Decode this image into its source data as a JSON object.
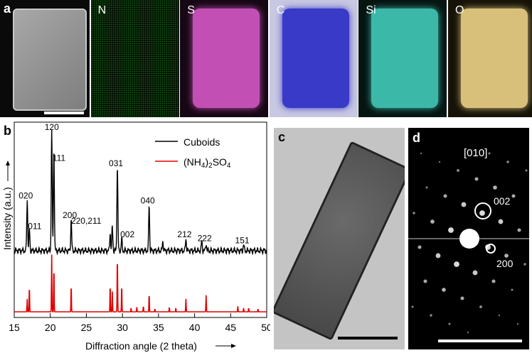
{
  "panel_a": {
    "label": "a",
    "maps": [
      {
        "element": "N",
        "bg": "#041004",
        "fill": "#1c8a1c",
        "rect": false
      },
      {
        "element": "S",
        "bg": "#160714",
        "fill": "#c250b4",
        "rect": true
      },
      {
        "element": "C",
        "bg": "#c8c8e2",
        "fill": "#3a3ac8",
        "rect": true
      },
      {
        "element": "Si",
        "bg": "#061512",
        "fill": "#3cb8a8",
        "rect": true
      },
      {
        "element": "O",
        "bg": "#161208",
        "fill": "#d8c07a",
        "rect": true
      }
    ]
  },
  "panel_b": {
    "label": "b",
    "chart_data": {
      "type": "line",
      "xlabel": "Diffraction angle (2 theta)",
      "ylabel": "Intensity (a.u.)",
      "xlim": [
        15,
        50
      ],
      "xticks": [
        15,
        20,
        25,
        30,
        35,
        40,
        45,
        50
      ],
      "legend_position": "top-right",
      "series": [
        {
          "name": "Cuboids",
          "color": "#000000",
          "baseline": 0.12,
          "peaks": [
            {
              "x": 16.8,
              "y": 0.42,
              "label": "020"
            },
            {
              "x": 17.1,
              "y": 0.18,
              "label": "011"
            },
            {
              "x": 20.2,
              "y": 1.0,
              "label": "120"
            },
            {
              "x": 20.5,
              "y": 0.85,
              "label": "111"
            },
            {
              "x": 22.9,
              "y": 0.26,
              "label": "200"
            },
            {
              "x": 28.3,
              "y": 0.15,
              "label": ""
            },
            {
              "x": 28.6,
              "y": 0.2,
              "label": "220,211"
            },
            {
              "x": 29.3,
              "y": 0.7,
              "label": "031"
            },
            {
              "x": 29.9,
              "y": 0.1,
              "label": "002"
            },
            {
              "x": 33.7,
              "y": 0.38,
              "label": "040"
            },
            {
              "x": 35.6,
              "y": 0.08,
              "label": ""
            },
            {
              "x": 38.8,
              "y": 0.1,
              "label": "212"
            },
            {
              "x": 41.0,
              "y": 0.08,
              "label": "222"
            },
            {
              "x": 41.6,
              "y": 0.06,
              "label": ""
            },
            {
              "x": 46.8,
              "y": 0.05,
              "label": "151"
            }
          ]
        },
        {
          "name": "(NH4)2SO4",
          "color": "#e00000",
          "baseline": 0,
          "peaks": [
            {
              "x": 16.8,
              "y": 0.14
            },
            {
              "x": 17.1,
              "y": 0.28
            },
            {
              "x": 20.2,
              "y": 0.62
            },
            {
              "x": 20.5,
              "y": 0.5
            },
            {
              "x": 22.9,
              "y": 0.3
            },
            {
              "x": 28.3,
              "y": 0.3
            },
            {
              "x": 28.6,
              "y": 0.22
            },
            {
              "x": 29.3,
              "y": 0.62
            },
            {
              "x": 29.9,
              "y": 0.3
            },
            {
              "x": 31.2,
              "y": 0.04
            },
            {
              "x": 32.0,
              "y": 0.05
            },
            {
              "x": 32.9,
              "y": 0.06
            },
            {
              "x": 33.7,
              "y": 0.2
            },
            {
              "x": 34.5,
              "y": 0.03
            },
            {
              "x": 36.5,
              "y": 0.05
            },
            {
              "x": 37.4,
              "y": 0.04
            },
            {
              "x": 38.8,
              "y": 0.14
            },
            {
              "x": 41.6,
              "y": 0.18
            },
            {
              "x": 46.0,
              "y": 0.06
            },
            {
              "x": 46.8,
              "y": 0.04
            },
            {
              "x": 47.5,
              "y": 0.04
            },
            {
              "x": 48.8,
              "y": 0.03
            }
          ]
        }
      ]
    }
  },
  "panel_c": {
    "label": "c"
  },
  "panel_d": {
    "label": "d",
    "zone_axis": "[010]",
    "spot_labels": [
      "002",
      "200"
    ]
  }
}
